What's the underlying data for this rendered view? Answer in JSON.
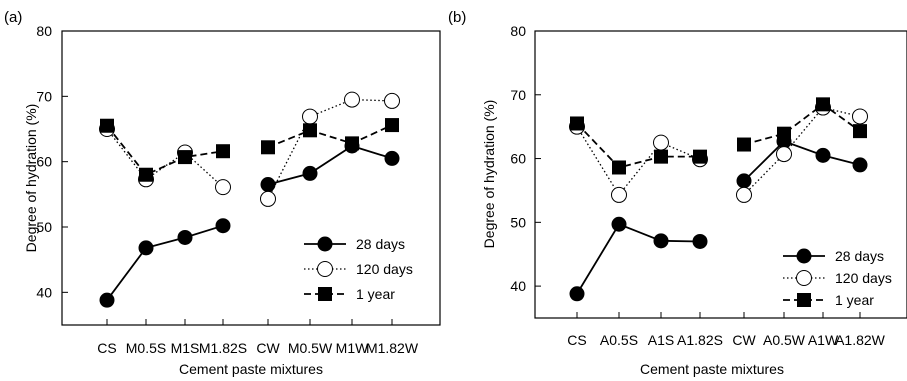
{
  "chart_data": [
    {
      "type": "line",
      "panel_label": "(a)",
      "xlabel": "Cement paste mixtures",
      "ylabel": "Degree of hydration (%)",
      "ylim": [
        35,
        80
      ],
      "yticks": [
        40,
        50,
        60,
        70,
        80
      ],
      "categories": [
        "CS",
        "M0.5S",
        "M1S",
        "M1.82S",
        "CW",
        "M0.5W",
        "M1W",
        "M1.82W"
      ],
      "groups": [
        [
          0,
          1,
          2,
          3
        ],
        [
          4,
          5,
          6,
          7
        ]
      ],
      "legend_position": "bottom-right",
      "series": [
        {
          "name": "28 days",
          "style": "solid",
          "marker": "filled-circle",
          "values": [
            38.8,
            46.8,
            48.4,
            50.2,
            56.5,
            58.2,
            62.4,
            60.5
          ]
        },
        {
          "name": "120 days",
          "style": "dotted",
          "marker": "open-circle",
          "values": [
            65.0,
            57.3,
            61.4,
            56.1,
            54.3,
            66.9,
            69.5,
            69.3
          ]
        },
        {
          "name": "1 year",
          "style": "dashed",
          "marker": "filled-square",
          "values": [
            65.5,
            58.0,
            60.7,
            61.6,
            62.2,
            64.8,
            62.8,
            65.6
          ]
        }
      ]
    },
    {
      "type": "line",
      "panel_label": "(b)",
      "xlabel": "Cement paste mixtures",
      "ylabel": "Degree of hydration (%)",
      "ylim": [
        35,
        80
      ],
      "yticks": [
        40,
        50,
        60,
        70,
        80
      ],
      "categories": [
        "CS",
        "A0.5S",
        "A1S",
        "A1.82S",
        "CW",
        "A0.5W",
        "A1W",
        "A1.82W"
      ],
      "groups": [
        [
          0,
          1,
          2,
          3
        ],
        [
          4,
          5,
          6,
          7
        ]
      ],
      "legend_position": "bottom-right",
      "series": [
        {
          "name": "28 days",
          "style": "solid",
          "marker": "filled-circle",
          "values": [
            38.8,
            49.7,
            47.1,
            47.0,
            56.5,
            62.7,
            60.5,
            59.0
          ]
        },
        {
          "name": "120 days",
          "style": "dotted",
          "marker": "open-circle",
          "values": [
            65.0,
            54.3,
            62.5,
            59.9,
            54.3,
            60.7,
            68.0,
            66.6
          ]
        },
        {
          "name": "1 year",
          "style": "dashed",
          "marker": "filled-square",
          "values": [
            65.5,
            58.6,
            60.3,
            60.3,
            62.2,
            63.9,
            68.5,
            64.3
          ]
        }
      ]
    }
  ]
}
